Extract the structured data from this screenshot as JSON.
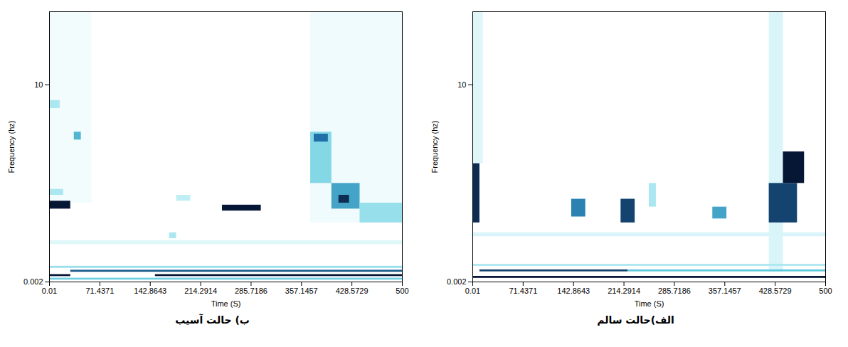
{
  "chart_data": [
    {
      "type": "heatmap",
      "title": "ب) حالت آسیب",
      "x_label": "Time (S)",
      "y_label": "Frequency (hz)",
      "xlim": [
        0.01,
        500
      ],
      "xticks": [
        0.01,
        71.4371,
        142.8643,
        214.2914,
        285.7186,
        357.1457,
        428.5729,
        500
      ],
      "ylim": [
        0.002,
        13.7
      ],
      "yticks": [
        0.002,
        10
      ],
      "intensity_range": [
        0,
        1
      ],
      "cells": [
        {
          "t0": 370,
          "t1": 500,
          "f0": 3,
          "f1": 13.7,
          "v": 0.06
        },
        {
          "t0": 0.01,
          "t1": 60,
          "f0": 4,
          "f1": 13.7,
          "v": 0.05
        },
        {
          "t0": 0.01,
          "t1": 500,
          "f0": 1.9,
          "f1": 2.1,
          "v": 0.12
        },
        {
          "t0": 0.01,
          "t1": 500,
          "f0": 0.1,
          "f1": 0.2,
          "v": 0.45
        },
        {
          "t0": 0.01,
          "t1": 30,
          "f0": 0.28,
          "f1": 0.38,
          "v": 0.95
        },
        {
          "t0": 150,
          "t1": 500,
          "f0": 0.28,
          "f1": 0.38,
          "v": 0.95
        },
        {
          "t0": 30,
          "t1": 500,
          "f0": 0.5,
          "f1": 0.6,
          "v": 0.8
        },
        {
          "t0": 0.01,
          "t1": 500,
          "f0": 0.7,
          "f1": 0.8,
          "v": 0.35
        },
        {
          "t0": 0.01,
          "t1": 30,
          "f0": 3.7,
          "f1": 4.1,
          "v": 0.95
        },
        {
          "t0": 0.01,
          "t1": 20,
          "f0": 4.4,
          "f1": 4.7,
          "v": 0.3
        },
        {
          "t0": 0.01,
          "t1": 15,
          "f0": 8.8,
          "f1": 9.2,
          "v": 0.3
        },
        {
          "t0": 35,
          "t1": 45,
          "f0": 7.2,
          "f1": 7.6,
          "v": 0.55
        },
        {
          "t0": 170,
          "t1": 180,
          "f0": 2.2,
          "f1": 2.5,
          "v": 0.3
        },
        {
          "t0": 180,
          "t1": 200,
          "f0": 4.1,
          "f1": 4.4,
          "v": 0.25
        },
        {
          "t0": 245,
          "t1": 300,
          "f0": 3.6,
          "f1": 3.9,
          "v": 0.95
        },
        {
          "t0": 370,
          "t1": 400,
          "f0": 5,
          "f1": 7.6,
          "v": 0.4
        },
        {
          "t0": 375,
          "t1": 395,
          "f0": 7.1,
          "f1": 7.5,
          "v": 0.75
        },
        {
          "t0": 400,
          "t1": 440,
          "f0": 3.7,
          "f1": 5,
          "v": 0.6
        },
        {
          "t0": 410,
          "t1": 425,
          "f0": 4,
          "f1": 4.4,
          "v": 0.9
        },
        {
          "t0": 440,
          "t1": 500,
          "f0": 3,
          "f1": 4,
          "v": 0.35
        }
      ]
    },
    {
      "type": "heatmap",
      "title": "الف)حالت سالم",
      "x_label": "Time (S)",
      "y_label": "Frequency (hz)",
      "xlim": [
        0.01,
        500
      ],
      "xticks": [
        0.01,
        71.4371,
        142.8643,
        214.2914,
        285.7186,
        357.1457,
        428.5729,
        500
      ],
      "ylim": [
        0.002,
        13.7
      ],
      "yticks": [
        0.002,
        10
      ],
      "intensity_range": [
        0,
        1
      ],
      "cells": [
        {
          "t0": 420,
          "t1": 440,
          "f0": 0.5,
          "f1": 13.7,
          "v": 0.15
        },
        {
          "t0": 0.01,
          "t1": 15,
          "f0": 6,
          "f1": 13.7,
          "v": 0.12
        },
        {
          "t0": 0.01,
          "t1": 500,
          "f0": 2.3,
          "f1": 2.5,
          "v": 0.15
        },
        {
          "t0": 0.01,
          "t1": 500,
          "f0": 0.19,
          "f1": 0.29,
          "v": 0.95
        },
        {
          "t0": 10,
          "t1": 220,
          "f0": 0.52,
          "f1": 0.62,
          "v": 0.85
        },
        {
          "t0": 220,
          "t1": 500,
          "f0": 0.52,
          "f1": 0.62,
          "v": 0.5
        },
        {
          "t0": 0.01,
          "t1": 500,
          "f0": 0.8,
          "f1": 0.9,
          "v": 0.3
        },
        {
          "t0": 0.01,
          "t1": 10,
          "f0": 3,
          "f1": 6,
          "v": 0.9
        },
        {
          "t0": 140,
          "t1": 160,
          "f0": 3.3,
          "f1": 4.2,
          "v": 0.7
        },
        {
          "t0": 210,
          "t1": 230,
          "f0": 3,
          "f1": 4.2,
          "v": 0.85
        },
        {
          "t0": 250,
          "t1": 260,
          "f0": 3.8,
          "f1": 5,
          "v": 0.3
        },
        {
          "t0": 340,
          "t1": 360,
          "f0": 3.2,
          "f1": 3.8,
          "v": 0.6
        },
        {
          "t0": 420,
          "t1": 460,
          "f0": 3,
          "f1": 5,
          "v": 0.85
        },
        {
          "t0": 440,
          "t1": 470,
          "f0": 5,
          "f1": 6.6,
          "v": 0.95
        }
      ]
    }
  ]
}
